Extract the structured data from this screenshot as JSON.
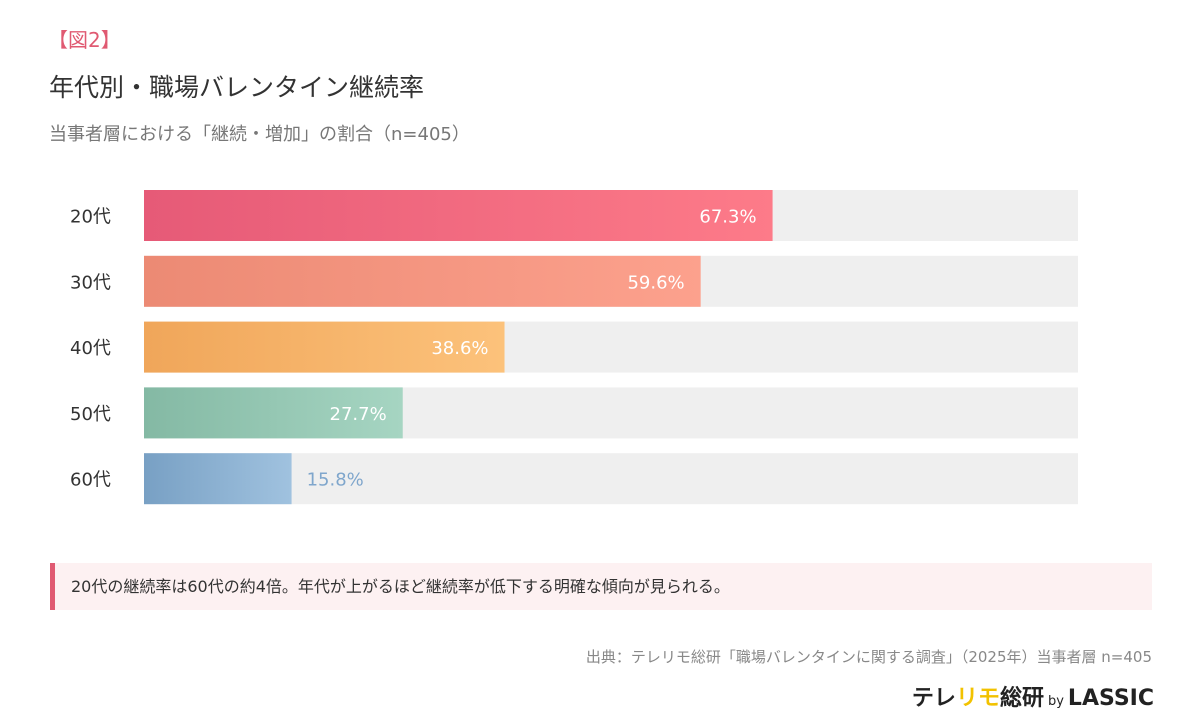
{
  "header": {
    "figure_label": "【図2】",
    "title": "年代別・職場バレンタイン継続率",
    "subtitle": "当事者層における「継続・増加」の割合（n=405）"
  },
  "chart_data": {
    "type": "bar",
    "orientation": "horizontal",
    "categories": [
      "20代",
      "30代",
      "40代",
      "50代",
      "60代"
    ],
    "values": [
      67.3,
      59.6,
      38.6,
      27.7,
      15.8
    ],
    "value_labels": [
      "67.3%",
      "59.6%",
      "38.6%",
      "27.7%",
      "15.8%"
    ],
    "xlim": [
      0,
      100
    ],
    "unit": "%",
    "colors": [
      [
        "#e65a77",
        "#fd7b89"
      ],
      [
        "#ec8a74",
        "#fca18d"
      ],
      [
        "#f0a65a",
        "#fcc27b"
      ],
      [
        "#84b9a4",
        "#a6d5c2"
      ],
      [
        "#78a0c4",
        "#a0c2df"
      ]
    ],
    "track_color": "#efefef",
    "outside_label_color": "#7fa6cc"
  },
  "callout": "20代の継続率は60代の約4倍。年代が上がるほど継続率が低下する明確な傾向が見られる。",
  "source": "出典：テレリモ総研「職場バレンタインに関する調査」（2025年）当事者層 n=405",
  "logo": {
    "part1": "テレ",
    "part2": "リモ",
    "part3": "総研",
    "by": "by",
    "brand": "LASSIC"
  }
}
